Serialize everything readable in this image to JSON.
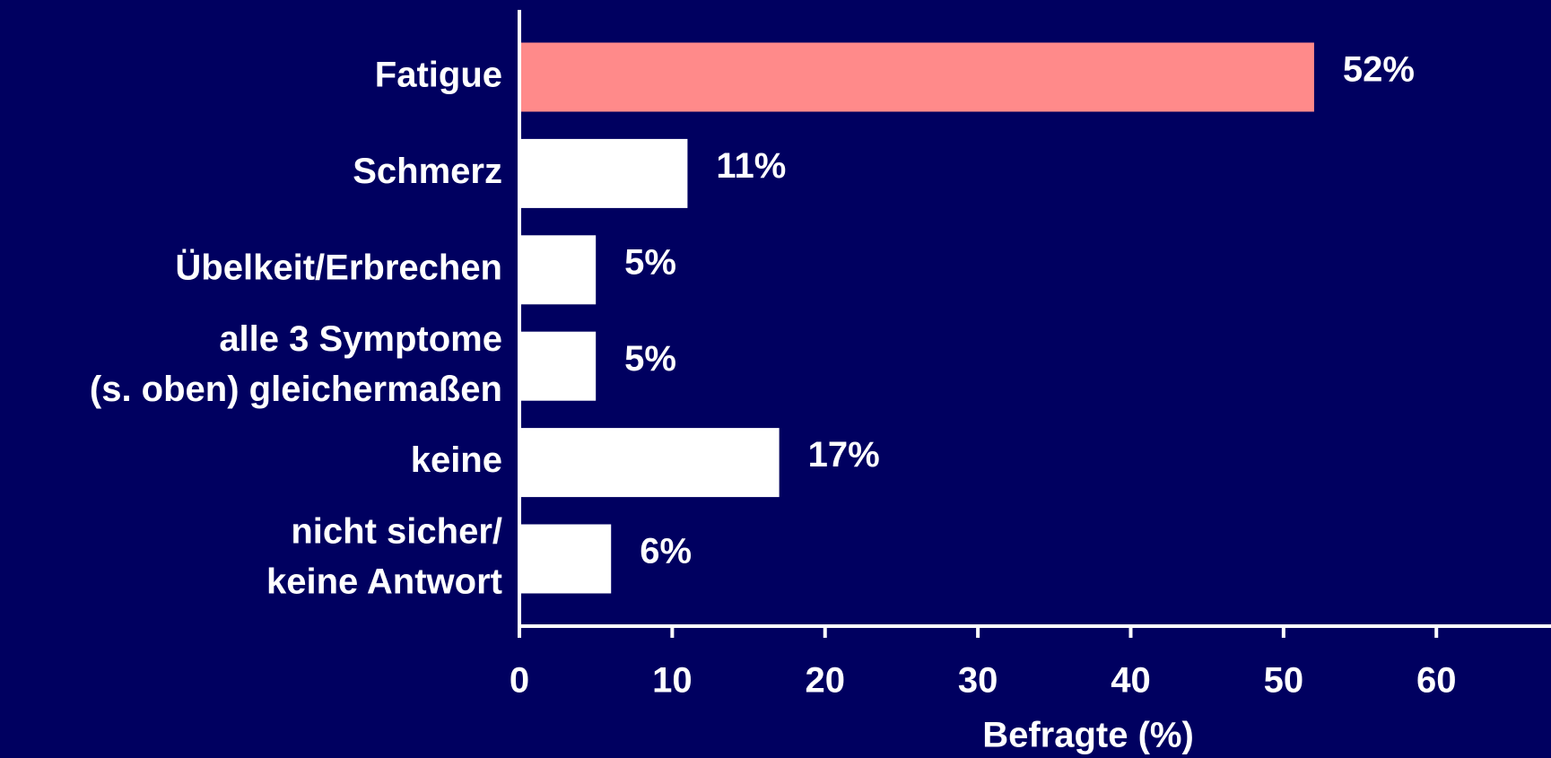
{
  "chart_data": {
    "type": "barh",
    "categories": [
      [
        "Fatigue"
      ],
      [
        "Schmerz"
      ],
      [
        "Übelkeit/Erbrechen"
      ],
      [
        "alle 3 Symptome",
        "(s. oben) gleichermaßen"
      ],
      [
        "keine"
      ],
      [
        "nicht sicher/",
        "keine Antwort"
      ]
    ],
    "values": [
      52,
      11,
      5,
      5,
      17,
      6
    ],
    "value_labels": [
      "52%",
      "11%",
      "5%",
      "5%",
      "17%",
      "6%"
    ],
    "colors": [
      "#ff8a8a",
      "#ffffff",
      "#ffffff",
      "#ffffff",
      "#ffffff",
      "#ffffff"
    ],
    "xlabel": "Befragte (%)",
    "xlim": [
      0,
      67.5
    ],
    "xticks": [
      0,
      10,
      20,
      30,
      40,
      50,
      60
    ]
  }
}
